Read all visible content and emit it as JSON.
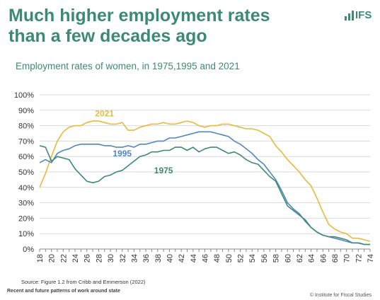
{
  "slide": {
    "headline_line1": "Much higher employment rates",
    "headline_line2": "than a few decades ago",
    "subtitle": "Employment rates of women, in 1975,1995 and 2021",
    "source": "Source: Figure 1.2 from Cribb and Emmerson (2022)",
    "footer_left": "Recent and future patterns of work around state",
    "footer_right": "© Institute for Fiscal Studies",
    "logo_text": "IFS",
    "accent_color": "#3d8a72"
  },
  "chart_data": {
    "type": "line",
    "x": [
      18,
      19,
      20,
      21,
      22,
      23,
      24,
      25,
      26,
      27,
      28,
      29,
      30,
      31,
      32,
      33,
      34,
      35,
      36,
      37,
      38,
      39,
      40,
      41,
      42,
      43,
      44,
      45,
      46,
      47,
      48,
      49,
      50,
      51,
      52,
      53,
      54,
      55,
      56,
      57,
      58,
      59,
      60,
      61,
      62,
      63,
      64,
      65,
      66,
      67,
      68,
      69,
      70,
      71,
      72,
      73,
      74
    ],
    "xticks": [
      18,
      20,
      22,
      24,
      26,
      28,
      30,
      32,
      34,
      36,
      38,
      40,
      42,
      44,
      46,
      48,
      50,
      52,
      54,
      56,
      58,
      60,
      62,
      64,
      66,
      68,
      70,
      72,
      74
    ],
    "ylim": [
      0,
      100
    ],
    "yticks": [
      "0%",
      "10%",
      "20%",
      "30%",
      "40%",
      "50%",
      "60%",
      "70%",
      "80%",
      "90%",
      "100%"
    ],
    "series": [
      {
        "name": "2021",
        "color": "#e8b93a",
        "values": [
          40,
          49,
          60,
          70,
          76,
          79,
          80,
          80,
          82,
          83,
          83,
          82,
          81,
          81,
          82,
          77,
          77,
          79,
          80,
          81,
          81,
          82,
          81,
          81,
          82,
          83,
          82,
          80,
          79,
          80,
          80,
          81,
          81,
          80,
          79,
          78,
          78,
          77,
          75,
          73,
          67,
          63,
          58,
          54,
          50,
          45,
          41,
          33,
          24,
          16,
          13,
          11,
          10,
          7,
          7,
          6,
          5
        ]
      },
      {
        "name": "1995",
        "color": "#4e86c6",
        "values": [
          56,
          58,
          56,
          62,
          64,
          65,
          67,
          68,
          68,
          68,
          68,
          67,
          67,
          66,
          66,
          67,
          66,
          68,
          68,
          69,
          70,
          70,
          72,
          72,
          73,
          74,
          75,
          76,
          76,
          76,
          75,
          74,
          73,
          70,
          68,
          65,
          62,
          58,
          55,
          50,
          45,
          38,
          30,
          26,
          23,
          18,
          14,
          11,
          9,
          8,
          7,
          6,
          5,
          4,
          4,
          3,
          3
        ]
      },
      {
        "name": "1975",
        "color": "#3d8a72",
        "values": [
          67,
          66,
          57,
          60,
          59,
          58,
          52,
          48,
          44,
          43,
          44,
          47,
          48,
          50,
          51,
          54,
          57,
          60,
          61,
          63,
          63,
          64,
          64,
          66,
          66,
          64,
          66,
          63,
          65,
          66,
          66,
          64,
          62,
          63,
          61,
          58,
          56,
          55,
          51,
          47,
          44,
          36,
          28,
          25,
          22,
          19,
          14,
          11,
          9,
          8,
          8,
          7,
          6,
          4,
          4,
          3,
          3
        ]
      }
    ]
  }
}
